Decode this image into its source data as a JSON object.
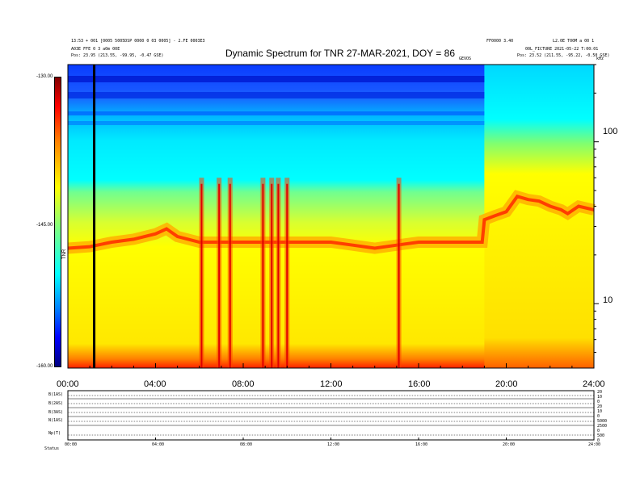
{
  "header": {
    "title": "Dynamic Spectrum for TNR 27-MAR-2021, DOY = 86",
    "left_info_1": "13:53 + 001 [0005 5005DSP 0000 0 03 0005] - 2.FE 0003E3",
    "left_info_2": "A03E FFE 0 3 a0m 00E",
    "left_info_3": "Pos:   23.95 (213.55, -99.95, -0.47 GSE)",
    "center_small": "GEVOS",
    "right_info_1": "FF0000 3.40",
    "right_info_2": "L2.0E T00M a 00 1",
    "right_info_3": "00L_FICTURE 2021-05-22 T:00:01",
    "right_info_4": "Pos:   23.52 (211.55, -95.22, -0.50 GSE)",
    "right_corner": "kHz"
  },
  "colors": {
    "background": "#ffffff",
    "colormap": [
      "#00007f",
      "#0000ff",
      "#0080ff",
      "#00ffff",
      "#80ff80",
      "#ffff00",
      "#ff8000",
      "#ff0000",
      "#800000"
    ]
  },
  "chart_data": {
    "type": "heatmap",
    "title": "Dynamic Spectrum for TNR 27-MAR-2021, DOY = 86",
    "x_axis": {
      "ticks": [
        "00:00",
        "04:00",
        "08:00",
        "12:00",
        "16:00",
        "20:00",
        "24:00"
      ],
      "range_hours": [
        0,
        24
      ]
    },
    "y_axis_right": {
      "scale": "log",
      "ticks": [
        "100",
        "10"
      ],
      "range": [
        4,
        300
      ]
    },
    "colorbar": {
      "ticks": [
        "-130.00",
        "-145.00",
        "-160.00"
      ],
      "label": "TNR",
      "range": [
        -160,
        -130
      ]
    },
    "ridge_frequency_khz": [
      [
        0.0,
        22
      ],
      [
        1.0,
        22.5
      ],
      [
        2.0,
        24
      ],
      [
        3.0,
        25
      ],
      [
        4.0,
        27
      ],
      [
        4.5,
        29
      ],
      [
        5.0,
        26
      ],
      [
        6.0,
        24
      ],
      [
        7.0,
        24
      ],
      [
        8.0,
        24
      ],
      [
        9.0,
        24
      ],
      [
        10.0,
        24
      ],
      [
        11.0,
        24
      ],
      [
        12.0,
        24
      ],
      [
        13.0,
        23
      ],
      [
        14.0,
        22
      ],
      [
        15.0,
        23
      ],
      [
        16.0,
        24
      ],
      [
        17.0,
        24
      ],
      [
        18.0,
        24
      ],
      [
        18.9,
        24
      ],
      [
        19.0,
        33
      ],
      [
        19.5,
        35
      ],
      [
        20.0,
        37
      ],
      [
        20.5,
        46
      ],
      [
        21.0,
        44
      ],
      [
        21.5,
        43
      ],
      [
        22.0,
        40
      ],
      [
        22.5,
        38
      ],
      [
        22.8,
        36
      ],
      [
        23.3,
        40
      ],
      [
        24.0,
        38
      ]
    ],
    "radio_bursts_hours": [
      6.1,
      6.9,
      7.4,
      8.9,
      9.3,
      9.6,
      10.0,
      15.1
    ],
    "vertical_marker_hours": 1.2
  },
  "panel": {
    "row_labels": [
      "B(1AS)",
      "B(2AS)",
      "B(3AS)",
      "N(1AS)",
      "Np(T)"
    ],
    "left_scale": "Status",
    "right_scale": [
      "20",
      "10",
      "0",
      "20",
      "10",
      "0",
      "5000",
      "2500",
      "0",
      "500",
      "0"
    ],
    "x_ticks": [
      "00:00",
      "04:00",
      "08:00",
      "12:00",
      "16:00",
      "20:00",
      "24:00"
    ]
  }
}
